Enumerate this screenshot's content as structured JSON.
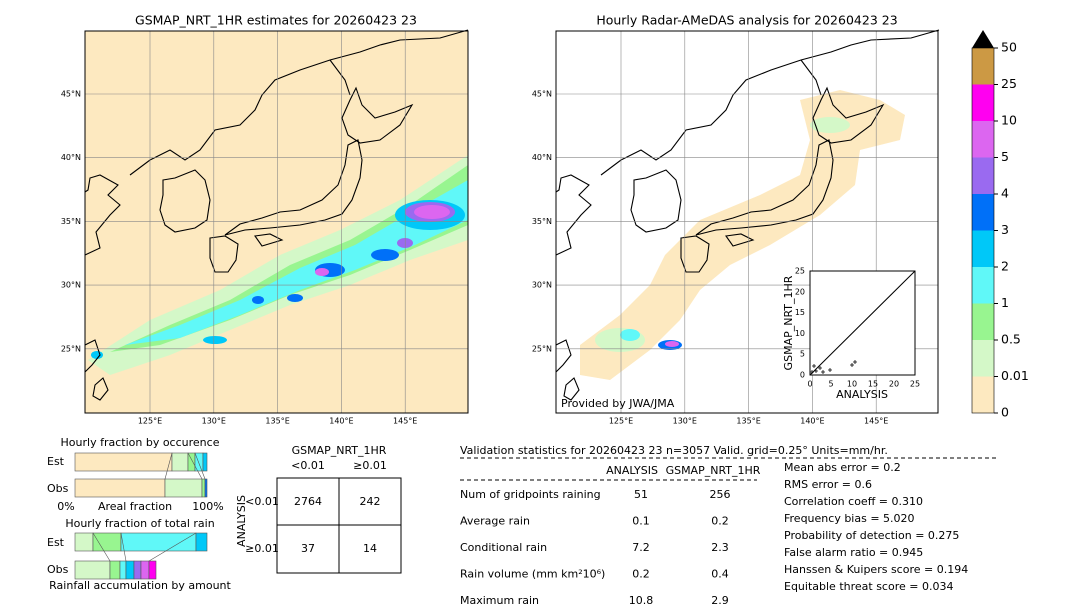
{
  "left_map": {
    "title": "GSMAP_NRT_1HR estimates for 20260423 23"
  },
  "right_map": {
    "title": "Hourly Radar-AMeDAS analysis for 20260423 23",
    "credit": "Provided by JWA/JMA"
  },
  "lat_labels": [
    "45°N",
    "40°N",
    "35°N",
    "30°N",
    "25°N"
  ],
  "lon_labels": [
    "125°E",
    "130°E",
    "135°E",
    "140°E",
    "145°E"
  ],
  "colorbar": {
    "labels": [
      "0",
      "0.01",
      "0.5",
      "1",
      "2",
      "3",
      "4",
      "5",
      "10",
      "25",
      "50"
    ],
    "colors": [
      "#fde9c0",
      "#d4f8c8",
      "#98f590",
      "#60f8f8",
      "#00c8f8",
      "#0070f8",
      "#9a6af0",
      "#dc66f0",
      "#ff00f0",
      "#cc9944"
    ]
  },
  "scatter": {
    "xlabel": "ANALYSIS",
    "ylabel": "GSMAP_NRT_1HR",
    "ticks": [
      "0",
      "5",
      "10",
      "15",
      "20",
      "25"
    ]
  },
  "fraction": {
    "occurrence_title": "Hourly fraction by occurence",
    "rain_title": "Hourly fraction of total rain",
    "est": "Est",
    "obs": "Obs",
    "axis_left": "0%",
    "axis_mid": "Areal fraction",
    "axis_right": "100%",
    "footer": "Rainfall accumulation by amount"
  },
  "contingency": {
    "title": "GSMAP_NRT_1HR",
    "col_labels": [
      "<0.01",
      "≥0.01"
    ],
    "row_title": "ANALYSIS",
    "row_labels": [
      "<0.01",
      "≥0.01"
    ],
    "rows": [
      [
        "2764",
        "242"
      ],
      [
        "37",
        "14"
      ]
    ]
  },
  "validation": {
    "header": "Validation statistics for 20260423 23  n=3057 Valid. grid=0.25° Units=mm/hr.",
    "columns": [
      "ANALYSIS",
      "GSMAP_NRT_1HR"
    ],
    "rows": [
      [
        "Num of gridpoints raining",
        "51",
        "256"
      ],
      [
        "Average rain",
        "0.1",
        "0.2"
      ],
      [
        "Conditional rain",
        "7.2",
        "2.3"
      ],
      [
        "Rain volume (mm km²10⁶)",
        "0.2",
        "0.4"
      ],
      [
        "Maximum rain",
        "10.8",
        "2.9"
      ]
    ],
    "scores": [
      "Mean abs error =    0.2",
      "RMS error =    0.6",
      "Correlation coeff =  0.310",
      "Frequency bias =  5.020",
      "Probability of detection =  0.275",
      "False alarm ratio =  0.945",
      "Hanssen & Kuipers score =  0.194",
      "Equitable threat score =  0.034"
    ]
  }
}
